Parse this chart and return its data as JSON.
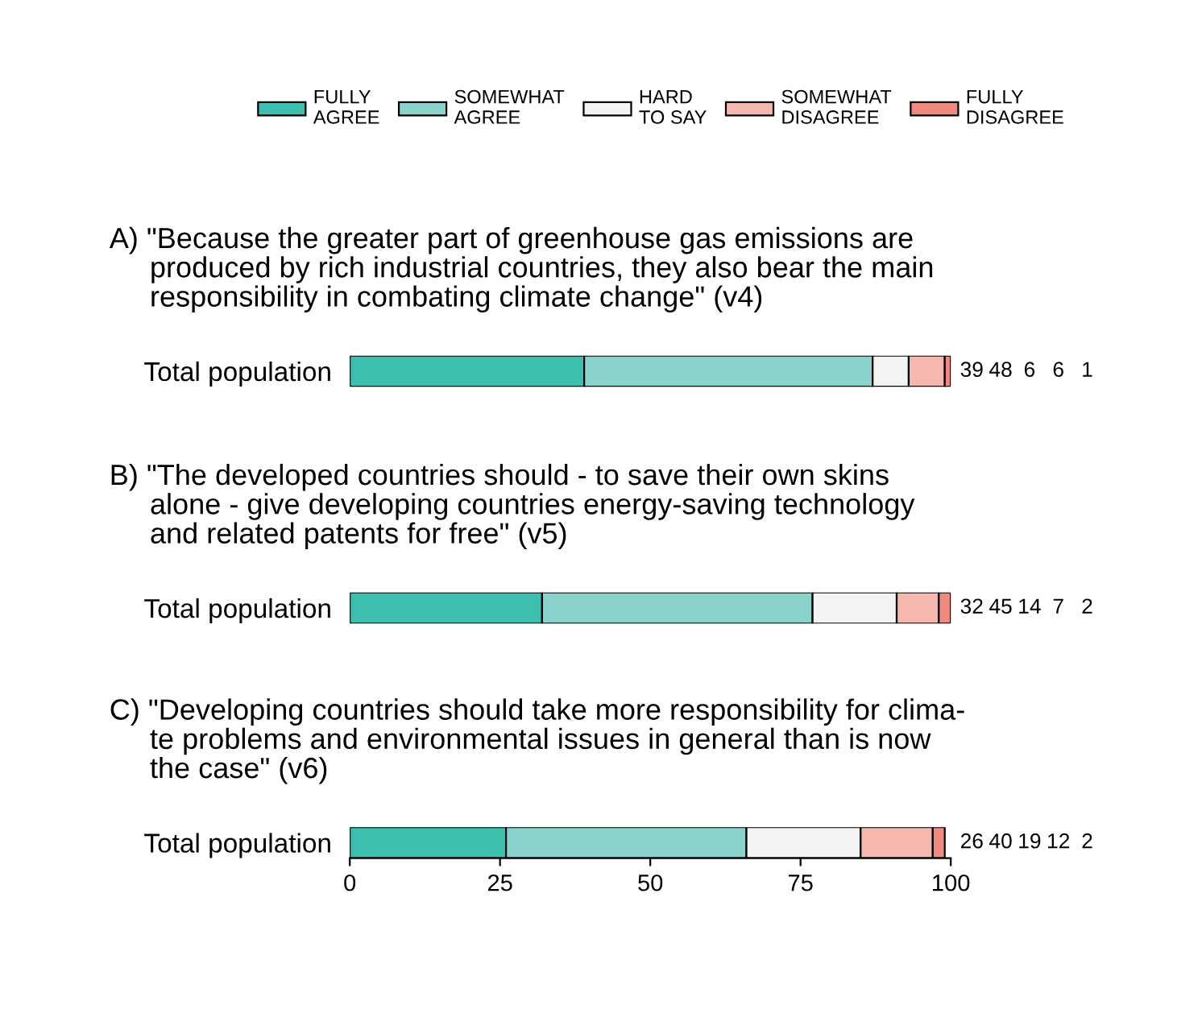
{
  "chart_data": [
    {
      "type": "bar",
      "orientation": "horizontal",
      "stacked": true,
      "title": "A) \"Because the greater part of greenhouse gas emissions are\n     produced by rich industrial countries, they also bear the main\n     responsibility in combating climate change\" (v4)",
      "categories": [
        "Total population"
      ],
      "xlim": [
        0,
        100
      ],
      "tick_labels": "y",
      "legend": "top",
      "annotations": [
        "39",
        "48",
        "6",
        "6",
        "1"
      ],
      "series": [
        {
          "name": "FULLY\nAGREE",
          "color": "#3dbfb0",
          "values": [
            39
          ]
        },
        {
          "name": "SOMEWHAT\nAGREE",
          "color": "#8ad3cc",
          "values": [
            48
          ]
        },
        {
          "name": "HARD\nTO SAY",
          "color": "#f3f3f3",
          "values": [
            6
          ]
        },
        {
          "name": "SOMEWHAT\nDISAGREE",
          "color": "#f6b8ae",
          "values": [
            6
          ]
        },
        {
          "name": "FULLY\nDISAGREE",
          "color": "#f08a80",
          "values": [
            1
          ]
        }
      ]
    },
    {
      "type": "bar",
      "orientation": "horizontal",
      "stacked": true,
      "title": "B) \"The developed countries should - to save their own skins\n     alone - give developing countries energy-saving technology\n     and related patents for free\" (v5)",
      "categories": [
        "Total population"
      ],
      "xlim": [
        0,
        100
      ],
      "tick_labels": "y",
      "annotations": [
        "32",
        "45",
        "14",
        "7",
        "2"
      ],
      "series": [
        {
          "color": "#3dbfb0",
          "values": [
            32
          ]
        },
        {
          "color": "#8ad3cc",
          "values": [
            45
          ]
        },
        {
          "color": "#f3f3f3",
          "values": [
            14
          ]
        },
        {
          "color": "#f6b8ae",
          "values": [
            7
          ]
        },
        {
          "color": "#f08a80",
          "values": [
            2
          ]
        }
      ]
    },
    {
      "type": "bar",
      "orientation": "horizontal",
      "stacked": true,
      "title": "C) \"Developing countries should take more responsibility for clima-\n     te problems and environmental issues in general than is now\n     the case\" (v6)",
      "categories": [
        "Total population"
      ],
      "xlim": [
        0,
        100
      ],
      "xticks": [
        0,
        25,
        50,
        75,
        100
      ],
      "annotations": [
        "26",
        "40",
        "19",
        "12",
        "2"
      ],
      "series": [
        {
          "color": "#3dbfb0",
          "values": [
            26
          ]
        },
        {
          "color": "#8ad3cc",
          "values": [
            40
          ]
        },
        {
          "color": "#f3f3f3",
          "values": [
            19
          ]
        },
        {
          "color": "#f6b8ae",
          "values": [
            12
          ]
        },
        {
          "color": "#f08a80",
          "values": [
            2
          ]
        }
      ]
    }
  ]
}
